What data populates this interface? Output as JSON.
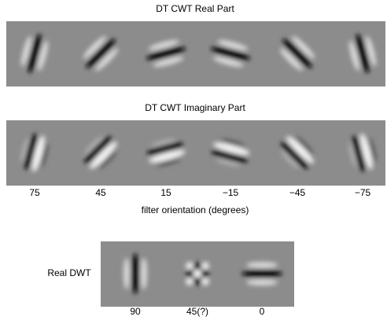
{
  "panels": [
    {
      "title": "DT CWT Real Part"
    },
    {
      "title": "DT CWT Imaginary Part"
    }
  ],
  "orientation_labels": [
    "75",
    "45",
    "15",
    "−15",
    "−45",
    "−75"
  ],
  "axis_label": "filter orientation (degrees)",
  "dwt": {
    "label": "Real DWT",
    "orientation_labels": [
      "90",
      "45(?)",
      "0"
    ]
  }
}
